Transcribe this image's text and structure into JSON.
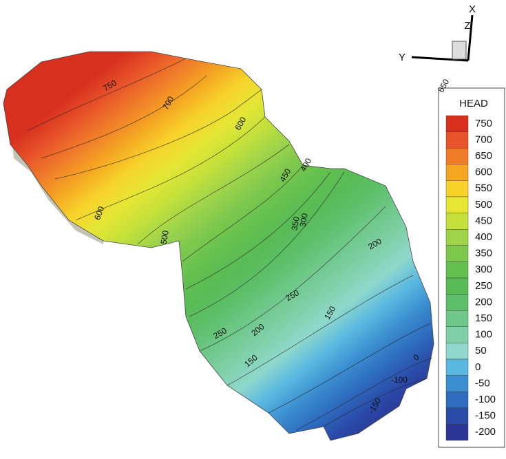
{
  "axes": {
    "x": "X",
    "y": "Y",
    "z": "Z"
  },
  "legend": {
    "title": "HEAD",
    "levels": [
      {
        "value": 750,
        "color": "#d7301f"
      },
      {
        "value": 700,
        "color": "#e8532a"
      },
      {
        "value": 650,
        "color": "#f07c2a"
      },
      {
        "value": 600,
        "color": "#f5a623"
      },
      {
        "value": 550,
        "color": "#f7d32a"
      },
      {
        "value": 500,
        "color": "#e6e635"
      },
      {
        "value": 450,
        "color": "#c5e03a"
      },
      {
        "value": 400,
        "color": "#9fd44a"
      },
      {
        "value": 350,
        "color": "#7ec84e"
      },
      {
        "value": 300,
        "color": "#63c04f"
      },
      {
        "value": 250,
        "color": "#58bb55"
      },
      {
        "value": 200,
        "color": "#5dbf6a"
      },
      {
        "value": 150,
        "color": "#6fc88a"
      },
      {
        "value": 100,
        "color": "#7fd0a8"
      },
      {
        "value": 50,
        "color": "#8fd8cb"
      },
      {
        "value": 0,
        "color": "#5ab8e0"
      },
      {
        "value": -50,
        "color": "#3b8fd0"
      },
      {
        "value": -100,
        "color": "#2e6cbf"
      },
      {
        "value": -150,
        "color": "#2a4aa8"
      },
      {
        "value": -200,
        "color": "#2a3595"
      }
    ]
  },
  "contour_labels": [
    750,
    700,
    650,
    600,
    600,
    500,
    450,
    400,
    350,
    300,
    200,
    250,
    150,
    250,
    200,
    150,
    0,
    -100,
    -150
  ]
}
